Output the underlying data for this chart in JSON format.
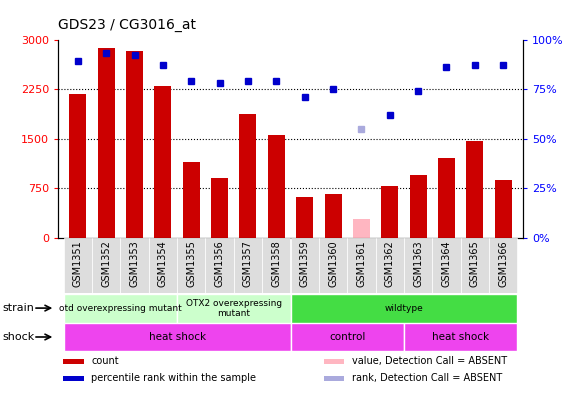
{
  "title": "GDS23 / CG3016_at",
  "samples": [
    "GSM1351",
    "GSM1352",
    "GSM1353",
    "GSM1354",
    "GSM1355",
    "GSM1356",
    "GSM1357",
    "GSM1358",
    "GSM1359",
    "GSM1360",
    "GSM1361",
    "GSM1362",
    "GSM1363",
    "GSM1364",
    "GSM1365",
    "GSM1366"
  ],
  "bar_values": [
    2180,
    2870,
    2820,
    2290,
    1150,
    900,
    1870,
    1550,
    620,
    660,
    280,
    780,
    950,
    1200,
    1470,
    870
  ],
  "bar_absent": [
    false,
    false,
    false,
    false,
    false,
    false,
    false,
    false,
    false,
    false,
    true,
    false,
    false,
    false,
    false,
    false
  ],
  "dot_values": [
    89,
    93,
    92,
    87,
    79,
    78,
    79,
    79,
    71,
    75,
    55,
    62,
    74,
    86,
    87,
    87
  ],
  "dot_absent": [
    false,
    false,
    false,
    false,
    false,
    false,
    false,
    false,
    false,
    false,
    true,
    false,
    false,
    false,
    false,
    false
  ],
  "ylim_left": [
    0,
    3000
  ],
  "ylim_right": [
    0,
    100
  ],
  "yticks_left": [
    0,
    750,
    1500,
    2250,
    3000
  ],
  "yticks_right": [
    0,
    25,
    50,
    75,
    100
  ],
  "bar_color": "#CC0000",
  "bar_absent_color": "#FFB6C1",
  "dot_color": "#0000CC",
  "dot_absent_color": "#AAAADD",
  "strain_boundaries": [
    -0.5,
    3.5,
    7.5,
    15.5
  ],
  "strain_labels": [
    "otd overexpressing mutant",
    "OTX2 overexpressing\nmutant",
    "wildtype"
  ],
  "strain_colors": [
    "#CCFFCC",
    "#CCFFCC",
    "#44DD44"
  ],
  "shock_boundaries": [
    -0.5,
    7.5,
    11.5,
    15.5
  ],
  "shock_labels": [
    "heat shock",
    "control",
    "heat shock"
  ],
  "shock_color": "#EE44EE",
  "legend_items": [
    {
      "label": "count",
      "color": "#CC0000"
    },
    {
      "label": "percentile rank within the sample",
      "color": "#0000CC"
    },
    {
      "label": "value, Detection Call = ABSENT",
      "color": "#FFB6C1"
    },
    {
      "label": "rank, Detection Call = ABSENT",
      "color": "#AAAADD"
    }
  ]
}
